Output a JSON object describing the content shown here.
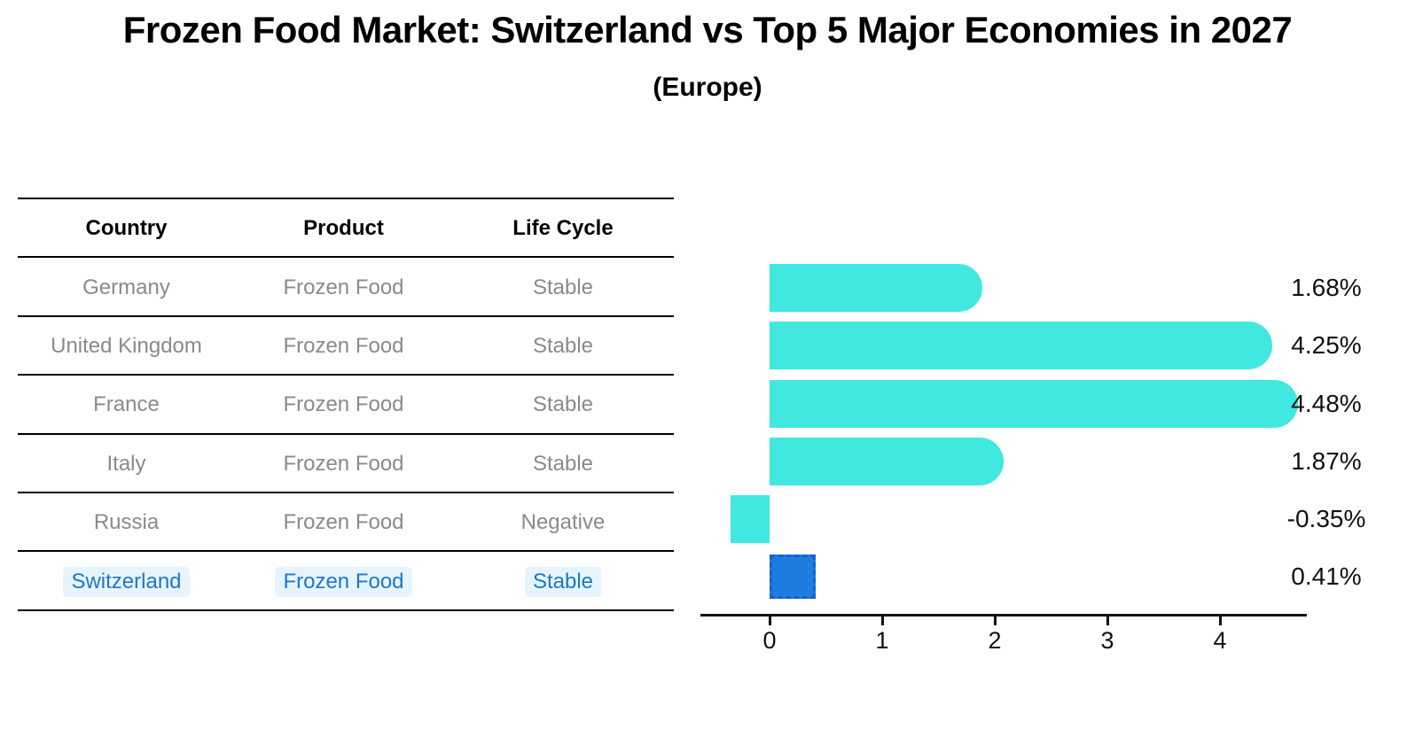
{
  "title": "Frozen Food Market: Switzerland vs Top 5 Major Economies in 2027",
  "subtitle": "(Europe)",
  "table": {
    "headers": [
      "Country",
      "Product",
      "Life Cycle"
    ],
    "rows": [
      {
        "country": "Germany",
        "product": "Frozen Food",
        "life_cycle": "Stable",
        "highlighted": false
      },
      {
        "country": "United Kingdom",
        "product": "Frozen Food",
        "life_cycle": "Stable",
        "highlighted": false
      },
      {
        "country": "France",
        "product": "Frozen Food",
        "life_cycle": "Stable",
        "highlighted": false
      },
      {
        "country": "Italy",
        "product": "Frozen Food",
        "life_cycle": "Stable",
        "highlighted": false
      },
      {
        "country": "Russia",
        "product": "Frozen Food",
        "life_cycle": "Negative",
        "highlighted": false
      },
      {
        "country": "Switzerland",
        "product": "Frozen Food",
        "life_cycle": "Stable",
        "highlighted": true
      }
    ]
  },
  "chart_data": {
    "type": "bar",
    "orientation": "horizontal",
    "title": "Frozen Food Market: Switzerland vs Top 5 Major Economies in 2027 (Europe)",
    "categories": [
      "Germany",
      "United Kingdom",
      "France",
      "Italy",
      "Russia",
      "Switzerland"
    ],
    "values": [
      1.68,
      4.25,
      4.48,
      1.87,
      -0.35,
      0.41
    ],
    "value_labels": [
      "1.68%",
      "4.25%",
      "4.48%",
      "1.87%",
      "-0.35%",
      "0.41%"
    ],
    "unit": "percent CAGR",
    "x_ticks": [
      0,
      1,
      2,
      3,
      4
    ],
    "xlim": [
      -0.6,
      4.75
    ],
    "grid": false,
    "legend": false,
    "bar_color": "#40E8E0",
    "highlight_color": "#1E7CE0",
    "highlight_index": 5
  },
  "colors": {
    "bar": "#40E8E0",
    "highlight_fill": "#1E7CE0",
    "highlight_border": "#1560CC",
    "link_blue": "#1F77C4",
    "row_gray": "#8A8A8A",
    "highlight_bg": "#E6F5FD",
    "axis": "#111111"
  }
}
